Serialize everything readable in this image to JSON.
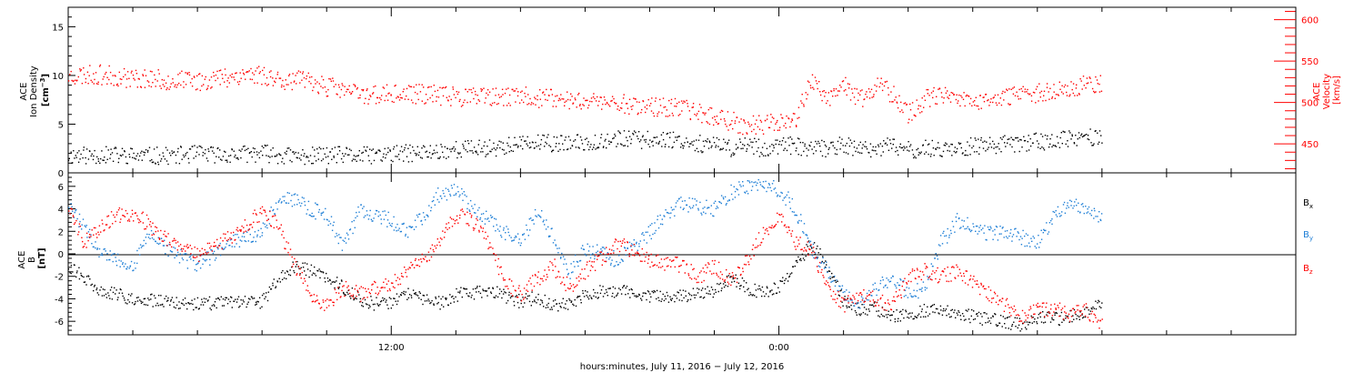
{
  "xaxis": {
    "label": "hours:minutes, July 11, 2016 − July 12, 2016",
    "range_hours": [
      2,
      40
    ],
    "tick_labels": [
      {
        "hour": 12,
        "text": "12:00"
      },
      {
        "hour": 24,
        "text": "0:00"
      }
    ],
    "minor_tick_hours": [
      2,
      4,
      6,
      8,
      10,
      12,
      14,
      16,
      18,
      20,
      22,
      24,
      26,
      28,
      30,
      32,
      34,
      36,
      38,
      40
    ]
  },
  "colors": {
    "black": "#000000",
    "blue": "#1f7fd6",
    "red": "#ff0000"
  },
  "chart_data": [
    {
      "type": "scatter",
      "panel": "plasma",
      "left_axis": {
        "label_lines": [
          "ACE",
          "Ion Density"
        ],
        "unit_text": "[cm",
        "unit_sup": "−3",
        "unit_close": "]",
        "ylim": [
          0,
          17
        ],
        "ticks": [
          0,
          5,
          10,
          15
        ]
      },
      "right_axis": {
        "label_lines": [
          "ACE",
          "Velocity",
          "[km/s]"
        ],
        "ylim": [
          415,
          615
        ],
        "ticks": [
          450,
          500,
          550,
          600
        ]
      },
      "grid": false,
      "series": [
        {
          "color": "black",
          "axis": "left",
          "x": [
            2.0,
            3.0,
            4.0,
            5.0,
            6.0,
            7.0,
            8.0,
            9.0,
            10.0,
            11.0,
            12.0,
            13.0,
            14.0,
            15.0,
            16.0,
            17.0,
            17.5,
            18.0,
            19.0,
            20.0,
            20.5,
            21.0,
            21.5,
            22.0,
            22.5,
            23.0,
            23.5,
            24.0,
            24.5,
            25.0,
            25.5,
            26.0,
            26.5,
            27.0,
            27.5,
            28.0,
            28.5,
            29.0,
            29.5,
            30.0,
            30.5,
            31.0,
            31.5,
            32.0,
            32.5,
            33.0,
            33.5,
            34.0
          ],
          "y": [
            1.8,
            1.9,
            1.8,
            1.8,
            2.0,
            1.9,
            2.1,
            1.7,
            1.9,
            1.8,
            2.0,
            2.1,
            2.5,
            2.6,
            3.0,
            3.1,
            3.0,
            3.2,
            3.6,
            3.4,
            3.6,
            3.3,
            3.1,
            2.8,
            2.6,
            3.0,
            2.5,
            2.9,
            2.8,
            2.5,
            2.6,
            3.0,
            2.3,
            2.6,
            2.8,
            2.4,
            2.5,
            2.6,
            2.6,
            2.8,
            2.9,
            3.0,
            3.1,
            3.4,
            3.2,
            3.6,
            3.6,
            3.8
          ]
        },
        {
          "color": "red",
          "axis": "right",
          "x": [
            2.0,
            2.5,
            3.0,
            3.5,
            4.0,
            4.5,
            5.0,
            5.5,
            6.0,
            6.5,
            7.0,
            7.5,
            8.0,
            8.5,
            9.0,
            9.5,
            10.0,
            11.0,
            12.0,
            13.0,
            14.0,
            15.0,
            15.5,
            16.0,
            17.0,
            18.0,
            19.0,
            20.0,
            21.0,
            22.0,
            22.5,
            23.0,
            23.5,
            24.0,
            24.5,
            25.0,
            25.5,
            26.0,
            26.5,
            27.0,
            27.5,
            28.0,
            28.5,
            29.0,
            29.5,
            30.0,
            30.5,
            31.0,
            31.5,
            32.0,
            32.5,
            33.0,
            33.5,
            34.0
          ],
          "y": [
            533,
            534,
            534,
            532,
            530,
            530,
            527,
            527,
            526,
            530,
            532,
            535,
            534,
            529,
            527,
            526,
            520,
            511,
            510,
            511,
            508,
            506,
            507,
            508,
            505,
            503,
            500,
            496,
            493,
            485,
            478,
            472,
            474,
            478,
            480,
            530,
            500,
            521,
            505,
            522,
            511,
            486,
            505,
            508,
            505,
            500,
            504,
            505,
            510,
            513,
            515,
            519,
            523,
            525
          ]
        }
      ]
    },
    {
      "type": "scatter",
      "panel": "magnetic_field",
      "left_axis": {
        "label_lines": [
          "ACE",
          "B",
          "[nT]"
        ],
        "ylim": [
          -7.2,
          7.2
        ],
        "ticks": [
          -6,
          -4,
          -2,
          0,
          2,
          4,
          6
        ],
        "zero_line": true
      },
      "grid": false,
      "legend_position": "right",
      "series": [
        {
          "name": "B",
          "sub": "x",
          "color": "black",
          "x": [
            2.0,
            2.5,
            3.0,
            3.5,
            4.0,
            5.0,
            6.0,
            7.0,
            8.0,
            8.5,
            9.0,
            9.5,
            10.0,
            10.5,
            11.0,
            11.5,
            12.0,
            12.5,
            13.0,
            13.5,
            14.0,
            15.0,
            16.0,
            16.5,
            17.0,
            17.5,
            18.0,
            19.0,
            20.0,
            21.0,
            22.0,
            22.5,
            23.0,
            23.5,
            24.0,
            24.5,
            25.0,
            25.5,
            26.0,
            26.5,
            27.0,
            27.5,
            28.0,
            28.5,
            29.0,
            29.5,
            30.0,
            30.5,
            31.0,
            31.5,
            32.0,
            32.5,
            33.0,
            33.5,
            34.0
          ],
          "y": [
            -1.0,
            -2.2,
            -3.3,
            -3.6,
            -3.9,
            -4.3,
            -4.4,
            -4.3,
            -4.2,
            -2.2,
            -1.0,
            -1.5,
            -2.0,
            -3.0,
            -4.0,
            -4.4,
            -4.2,
            -3.5,
            -4.0,
            -4.3,
            -3.6,
            -3.2,
            -4.2,
            -3.8,
            -4.5,
            -4.3,
            -3.5,
            -3.2,
            -3.8,
            -3.7,
            -3.2,
            -2.0,
            -3.0,
            -3.5,
            -2.8,
            -1.0,
            1.0,
            -1.2,
            -4.2,
            -5.0,
            -4.8,
            -5.5,
            -5.2,
            -5.0,
            -4.9,
            -5.4,
            -5.5,
            -5.8,
            -6.0,
            -6.3,
            -5.5,
            -5.8,
            -5.6,
            -5.0,
            -4.1
          ]
        },
        {
          "name": "B",
          "sub": "y",
          "color": "blue",
          "x": [
            2.0,
            3.0,
            4.0,
            4.5,
            5.0,
            6.0,
            7.0,
            7.5,
            8.0,
            8.5,
            9.0,
            9.5,
            10.0,
            10.5,
            11.0,
            12.0,
            12.5,
            13.0,
            13.5,
            14.0,
            15.0,
            16.0,
            16.5,
            17.0,
            17.5,
            18.0,
            19.0,
            20.0,
            20.5,
            21.0,
            22.0,
            22.5,
            23.0,
            23.5,
            24.0,
            24.5,
            25.0,
            25.5,
            26.0,
            26.5,
            27.0,
            27.5,
            28.0,
            28.5,
            29.0,
            29.5,
            30.0,
            30.5,
            31.0,
            31.5,
            32.0,
            32.5,
            33.0,
            33.5,
            34.0
          ],
          "y": [
            4.5,
            0.0,
            -1.0,
            2.0,
            0.5,
            -1.0,
            1.0,
            1.5,
            2.0,
            4.8,
            5.0,
            4.0,
            3.5,
            0.5,
            4.0,
            3.0,
            2.0,
            3.5,
            5.5,
            5.6,
            3.0,
            1.0,
            4.0,
            1.5,
            -1.5,
            0.5,
            -0.5,
            2.0,
            3.5,
            4.5,
            4.0,
            5.5,
            6.0,
            6.0,
            5.8,
            4.0,
            0.5,
            -1.5,
            -3.5,
            -4.5,
            -3.0,
            -2.0,
            -3.5,
            -3.0,
            1.0,
            3.0,
            2.5,
            1.8,
            2.0,
            1.5,
            1.0,
            3.5,
            4.5,
            4.2,
            3.0
          ]
        },
        {
          "name": "B",
          "sub": "z",
          "color": "red",
          "x": [
            2.0,
            2.5,
            3.0,
            3.5,
            4.0,
            5.0,
            6.0,
            7.0,
            8.0,
            8.5,
            9.0,
            9.5,
            10.0,
            10.5,
            11.0,
            11.5,
            12.0,
            13.0,
            13.5,
            14.0,
            14.5,
            15.0,
            15.5,
            16.0,
            17.0,
            17.5,
            18.0,
            19.0,
            20.0,
            21.0,
            21.5,
            22.0,
            22.5,
            23.0,
            23.5,
            24.0,
            24.5,
            25.0,
            25.5,
            26.0,
            26.5,
            27.0,
            27.5,
            28.0,
            28.5,
            29.0,
            29.5,
            30.0,
            30.5,
            31.0,
            31.5,
            32.0,
            32.5,
            33.0,
            33.5,
            34.0
          ],
          "y": [
            4.2,
            1.0,
            2.5,
            3.5,
            3.7,
            1.5,
            0.0,
            1.5,
            3.8,
            2.5,
            -1.0,
            -3.5,
            -4.5,
            -3.0,
            -3.5,
            -3.0,
            -2.5,
            -0.5,
            1.5,
            3.5,
            3.0,
            1.0,
            -2.5,
            -3.5,
            -1.0,
            -3.0,
            -1.5,
            1.0,
            -0.5,
            -1.0,
            -2.0,
            -1.0,
            -2.5,
            -0.5,
            2.0,
            3.5,
            1.0,
            0.5,
            -3.0,
            -4.5,
            -3.5,
            -4.0,
            -4.5,
            -2.0,
            -1.5,
            -2.0,
            -1.5,
            -2.5,
            -3.5,
            -4.5,
            -5.5,
            -5.0,
            -4.8,
            -5.3,
            -5.0,
            -6.3
          ]
        }
      ]
    }
  ]
}
